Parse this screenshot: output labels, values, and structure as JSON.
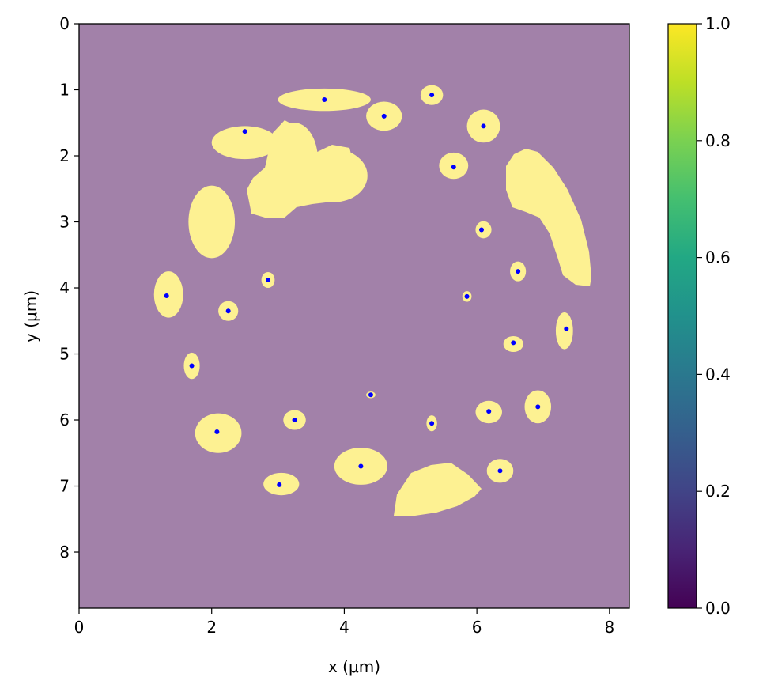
{
  "chart_data": {
    "type": "heatmap",
    "title": "",
    "xlabel": "x (μm)",
    "ylabel": "y (μm)",
    "xlim": [
      0,
      8.3
    ],
    "ylim": [
      8.85,
      0
    ],
    "x_ticks": [
      {
        "value": 0,
        "label": "0"
      },
      {
        "value": 2,
        "label": "2"
      },
      {
        "value": 4,
        "label": "4"
      },
      {
        "value": 6,
        "label": "6"
      },
      {
        "value": 8,
        "label": "8"
      }
    ],
    "y_ticks": [
      {
        "value": 0,
        "label": "0"
      },
      {
        "value": 1,
        "label": "1"
      },
      {
        "value": 2,
        "label": "2"
      },
      {
        "value": 3,
        "label": "3"
      },
      {
        "value": 4,
        "label": "4"
      },
      {
        "value": 5,
        "label": "5"
      },
      {
        "value": 6,
        "label": "6"
      },
      {
        "value": 7,
        "label": "7"
      },
      {
        "value": 8,
        "label": "8"
      }
    ],
    "colorbar": {
      "colormap": "viridis",
      "range": [
        0,
        1
      ],
      "ticks": [
        {
          "value": 0.0,
          "label": "0.0"
        },
        {
          "value": 0.2,
          "label": "0.2"
        },
        {
          "value": 0.4,
          "label": "0.4"
        },
        {
          "value": 0.6,
          "label": "0.6"
        },
        {
          "value": 0.8,
          "label": "0.8"
        },
        {
          "value": 1.0,
          "label": "1.0"
        }
      ]
    },
    "background_color": "#a281a9",
    "region_color": "#fdf192",
    "centroid_color": "#0000ff",
    "regions": [
      {
        "cx": 3.7,
        "cy": 1.15,
        "rx": 0.7,
        "ry": 0.17
      },
      {
        "cx": 4.6,
        "cy": 1.4,
        "rx": 0.27,
        "ry": 0.22
      },
      {
        "cx": 5.32,
        "cy": 1.08,
        "rx": 0.17,
        "ry": 0.15
      },
      {
        "cx": 6.1,
        "cy": 1.55,
        "rx": 0.25,
        "ry": 0.25
      },
      {
        "cx": 2.5,
        "cy": 1.8,
        "rx": 0.5,
        "ry": 0.25
      },
      {
        "cx": 3.25,
        "cy": 2.05,
        "rx": 0.35,
        "ry": 0.55
      },
      {
        "cx": 3.85,
        "cy": 2.3,
        "rx": 0.5,
        "ry": 0.4
      },
      {
        "cx": 5.65,
        "cy": 2.15,
        "rx": 0.22,
        "ry": 0.2
      },
      {
        "cx": 2.0,
        "cy": 3.0,
        "rx": 0.35,
        "ry": 0.55
      },
      {
        "cx": 6.1,
        "cy": 3.12,
        "rx": 0.12,
        "ry": 0.13
      },
      {
        "cx": 2.85,
        "cy": 3.88,
        "rx": 0.1,
        "ry": 0.12
      },
      {
        "cx": 1.35,
        "cy": 4.1,
        "rx": 0.22,
        "ry": 0.35
      },
      {
        "cx": 2.25,
        "cy": 4.35,
        "rx": 0.15,
        "ry": 0.15
      },
      {
        "cx": 6.62,
        "cy": 3.75,
        "rx": 0.12,
        "ry": 0.15
      },
      {
        "cx": 5.85,
        "cy": 4.13,
        "rx": 0.07,
        "ry": 0.08
      },
      {
        "cx": 7.32,
        "cy": 4.65,
        "rx": 0.13,
        "ry": 0.28
      },
      {
        "cx": 6.55,
        "cy": 4.85,
        "rx": 0.15,
        "ry": 0.12
      },
      {
        "cx": 1.7,
        "cy": 5.18,
        "rx": 0.12,
        "ry": 0.2
      },
      {
        "cx": 4.4,
        "cy": 5.62,
        "rx": 0.07,
        "ry": 0.05
      },
      {
        "cx": 3.25,
        "cy": 6.0,
        "rx": 0.17,
        "ry": 0.15
      },
      {
        "cx": 5.32,
        "cy": 6.05,
        "rx": 0.08,
        "ry": 0.12
      },
      {
        "cx": 6.18,
        "cy": 5.88,
        "rx": 0.2,
        "ry": 0.17
      },
      {
        "cx": 6.92,
        "cy": 5.8,
        "rx": 0.2,
        "ry": 0.25
      },
      {
        "cx": 2.1,
        "cy": 6.2,
        "rx": 0.35,
        "ry": 0.3
      },
      {
        "cx": 4.25,
        "cy": 6.7,
        "rx": 0.4,
        "ry": 0.28
      },
      {
        "cx": 6.35,
        "cy": 6.77,
        "rx": 0.2,
        "ry": 0.18
      },
      {
        "cx": 3.05,
        "cy": 6.97,
        "rx": 0.27,
        "ry": 0.17
      }
    ],
    "centroids": [
      {
        "x": 3.7,
        "y": 1.15
      },
      {
        "x": 4.6,
        "y": 1.4
      },
      {
        "x": 5.32,
        "y": 1.08
      },
      {
        "x": 6.1,
        "y": 1.55
      },
      {
        "x": 2.5,
        "y": 1.63
      },
      {
        "x": 5.65,
        "y": 2.17
      },
      {
        "x": 6.07,
        "y": 3.12
      },
      {
        "x": 2.85,
        "y": 3.88
      },
      {
        "x": 6.62,
        "y": 3.75
      },
      {
        "x": 1.32,
        "y": 4.12
      },
      {
        "x": 5.85,
        "y": 4.13
      },
      {
        "x": 2.25,
        "y": 4.35
      },
      {
        "x": 7.35,
        "y": 4.62
      },
      {
        "x": 6.55,
        "y": 4.83
      },
      {
        "x": 1.7,
        "y": 5.18
      },
      {
        "x": 4.4,
        "y": 5.62
      },
      {
        "x": 3.25,
        "y": 6.0
      },
      {
        "x": 5.32,
        "y": 6.05
      },
      {
        "x": 6.18,
        "y": 5.87
      },
      {
        "x": 6.92,
        "y": 5.8
      },
      {
        "x": 2.08,
        "y": 6.18
      },
      {
        "x": 4.25,
        "y": 6.7
      },
      {
        "x": 6.35,
        "y": 6.77
      },
      {
        "x": 3.02,
        "y": 6.98
      }
    ]
  }
}
